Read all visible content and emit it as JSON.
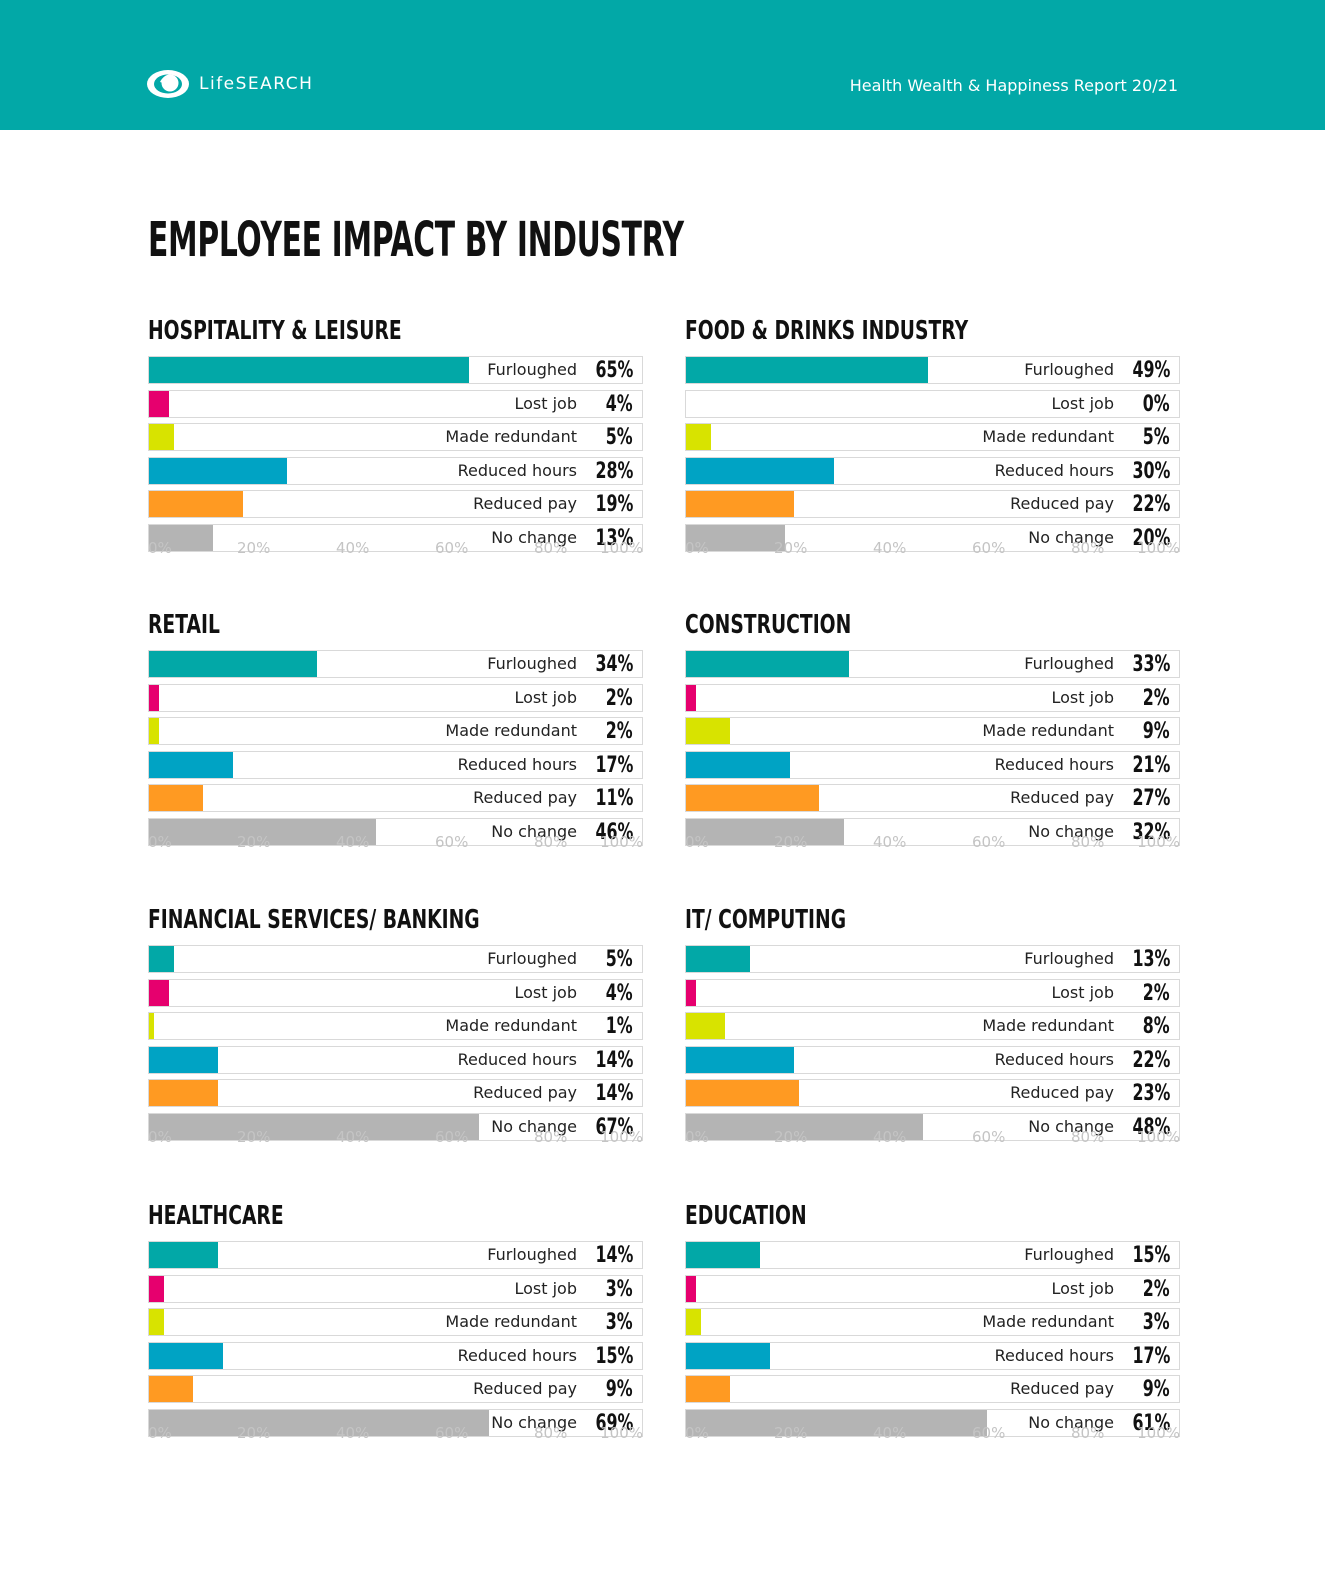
{
  "header": {
    "brand": "LifeSEARCH",
    "report_title": "Health Wealth & Happiness Report 20/21",
    "logo_icon": "eye-icon"
  },
  "page_title": "EMPLOYEE IMPACT BY INDUSTRY",
  "colors": {
    "header_bg": "#02a8a7",
    "furloughed": "#02a8a7",
    "lost_job": "#e6006e",
    "made_redundant": "#d8e300",
    "reduced_hours": "#00a3c4",
    "reduced_pay": "#ff9a22",
    "no_change": "#b4b4b4"
  },
  "chart_data": [
    {
      "type": "bar",
      "title": "HOSPITALITY & LEISURE",
      "categories": [
        "Furloughed",
        "Lost job",
        "Made redundant",
        "Reduced hours",
        "Reduced pay",
        "No change"
      ],
      "values": [
        65,
        4,
        5,
        28,
        19,
        13
      ],
      "value_labels": [
        "65%",
        "4%",
        "5%",
        "28%",
        "19%",
        "13%"
      ],
      "xlim": [
        0,
        100
      ],
      "ticks": [
        "0%",
        "20%",
        "40%",
        "60%",
        "80%",
        "100%"
      ]
    },
    {
      "type": "bar",
      "title": "FOOD & DRINKS INDUSTRY",
      "categories": [
        "Furloughed",
        "Lost job",
        "Made redundant",
        "Reduced hours",
        "Reduced pay",
        "No change"
      ],
      "values": [
        49,
        0,
        5,
        30,
        22,
        20
      ],
      "value_labels": [
        "49%",
        "0%",
        "5%",
        "30%",
        "22%",
        "20%"
      ],
      "xlim": [
        0,
        100
      ],
      "ticks": [
        "0%",
        "20%",
        "40%",
        "60%",
        "80%",
        "100%"
      ]
    },
    {
      "type": "bar",
      "title": "RETAIL",
      "categories": [
        "Furloughed",
        "Lost job",
        "Made redundant",
        "Reduced hours",
        "Reduced pay",
        "No change"
      ],
      "values": [
        34,
        2,
        2,
        17,
        11,
        46
      ],
      "value_labels": [
        "34%",
        "2%",
        "2%",
        "17%",
        "11%",
        "46%"
      ],
      "xlim": [
        0,
        100
      ],
      "ticks": [
        "0%",
        "20%",
        "40%",
        "60%",
        "80%",
        "100%"
      ]
    },
    {
      "type": "bar",
      "title": "CONSTRUCTION",
      "categories": [
        "Furloughed",
        "Lost job",
        "Made redundant",
        "Reduced hours",
        "Reduced pay",
        "No change"
      ],
      "values": [
        33,
        2,
        9,
        21,
        27,
        32
      ],
      "value_labels": [
        "33%",
        "2%",
        "9%",
        "21%",
        "27%",
        "32%"
      ],
      "xlim": [
        0,
        100
      ],
      "ticks": [
        "0%",
        "20%",
        "40%",
        "60%",
        "80%",
        "100%"
      ]
    },
    {
      "type": "bar",
      "title": "FINANCIAL SERVICES/ BANKING",
      "categories": [
        "Furloughed",
        "Lost job",
        "Made redundant",
        "Reduced hours",
        "Reduced pay",
        "No change"
      ],
      "values": [
        5,
        4,
        1,
        14,
        14,
        67
      ],
      "value_labels": [
        "5%",
        "4%",
        "1%",
        "14%",
        "14%",
        "67%"
      ],
      "xlim": [
        0,
        100
      ],
      "ticks": [
        "0%",
        "20%",
        "40%",
        "60%",
        "80%",
        "100%"
      ]
    },
    {
      "type": "bar",
      "title": "IT/ COMPUTING",
      "categories": [
        "Furloughed",
        "Lost job",
        "Made redundant",
        "Reduced hours",
        "Reduced pay",
        "No change"
      ],
      "values": [
        13,
        2,
        8,
        22,
        23,
        48
      ],
      "value_labels": [
        "13%",
        "2%",
        "8%",
        "22%",
        "23%",
        "48%"
      ],
      "xlim": [
        0,
        100
      ],
      "ticks": [
        "0%",
        "20%",
        "40%",
        "60%",
        "80%",
        "100%"
      ]
    },
    {
      "type": "bar",
      "title": "HEALTHCARE",
      "categories": [
        "Furloughed",
        "Lost job",
        "Made redundant",
        "Reduced hours",
        "Reduced pay",
        "No change"
      ],
      "values": [
        14,
        3,
        3,
        15,
        9,
        69
      ],
      "value_labels": [
        "14%",
        "3%",
        "3%",
        "15%",
        "9%",
        "69%"
      ],
      "xlim": [
        0,
        100
      ],
      "ticks": [
        "0%",
        "20%",
        "40%",
        "60%",
        "80%",
        "100%"
      ]
    },
    {
      "type": "bar",
      "title": "EDUCATION",
      "categories": [
        "Furloughed",
        "Lost job",
        "Made redundant",
        "Reduced hours",
        "Reduced pay",
        "No change"
      ],
      "values": [
        15,
        2,
        3,
        17,
        9,
        61
      ],
      "value_labels": [
        "15%",
        "2%",
        "3%",
        "17%",
        "9%",
        "61%"
      ],
      "xlim": [
        0,
        100
      ],
      "ticks": [
        "0%",
        "20%",
        "40%",
        "60%",
        "80%",
        "100%"
      ]
    }
  ]
}
